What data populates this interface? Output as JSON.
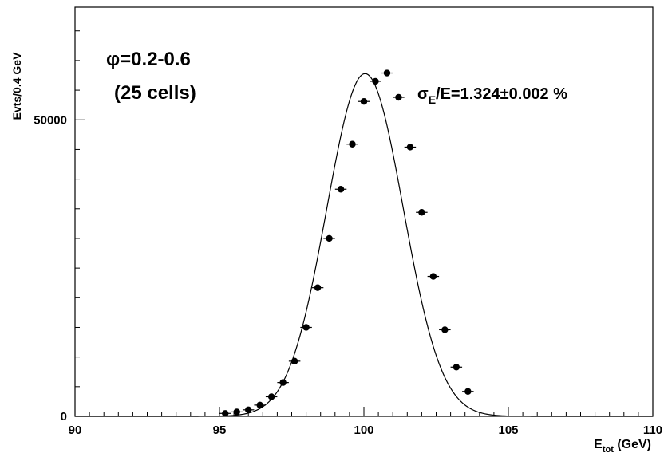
{
  "chart_data": {
    "type": "scatter",
    "title": "",
    "xlabel_main": "E",
    "xlabel_sub": "tot",
    "xlabel_unit": " (GeV)",
    "ylabel": "Evts/0.4 GeV",
    "xlim": [
      90,
      110
    ],
    "ylim": [
      0,
      69000
    ],
    "xticks": [
      90,
      95,
      100,
      105,
      110
    ],
    "yticks": [
      0,
      50000
    ],
    "grid": false,
    "annotations": {
      "phi_line": "φ=0.2-0.6",
      "cells_line": "(25 cells)",
      "resolution_sigma": "σ",
      "resolution_sub": "E",
      "resolution_rest": "/E=1.324±0.002 %"
    },
    "series": [
      {
        "kind": "points",
        "x": [
          95.2,
          95.6,
          96.0,
          96.4,
          96.8,
          97.2,
          97.6,
          98.0,
          98.4,
          98.8,
          99.2,
          99.6,
          100.0,
          100.4,
          100.8,
          101.2,
          101.6,
          102.0,
          102.4,
          102.8,
          103.2,
          103.6
        ],
        "y": [
          500,
          750,
          1100,
          1900,
          3300,
          5700,
          9300,
          15000,
          21700,
          30000,
          38300,
          45900,
          53100,
          56500,
          57900,
          53800,
          45400,
          34400,
          23600,
          14600,
          8300,
          4200
        ]
      },
      {
        "kind": "fit_curve",
        "model": "gaussian",
        "mean": 100.04,
        "sigma": 1.324,
        "amplitude": 57800
      }
    ]
  }
}
